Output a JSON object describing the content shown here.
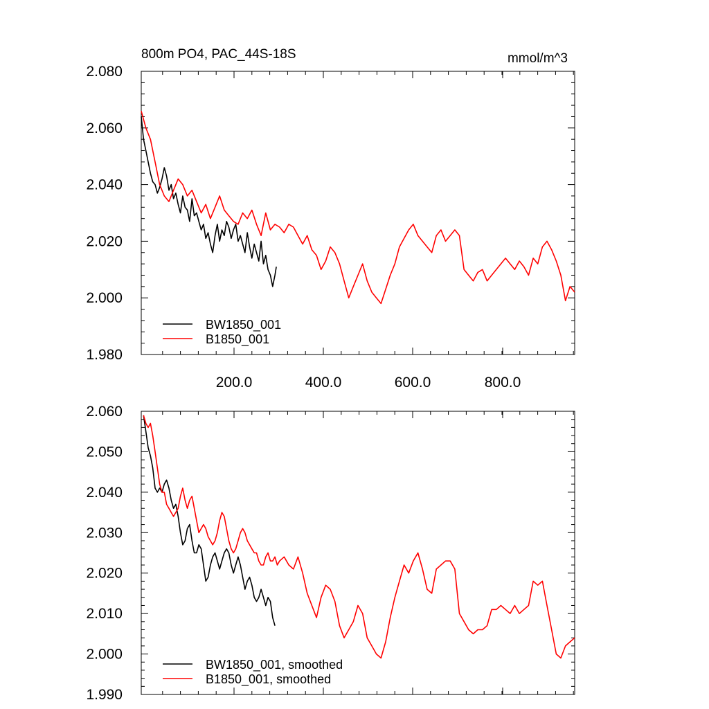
{
  "chart_data": [
    {
      "type": "line",
      "title": "800m PO4, PAC_44S-18S",
      "units": "mmol/m^3",
      "xlim": [
        0,
        940
      ],
      "ylim": [
        1.98,
        2.08
      ],
      "y_ticks": [
        "1.980",
        "2.000",
        "2.020",
        "2.040",
        "2.060",
        "2.080"
      ],
      "x_ticks": [
        "200.0",
        "400.0",
        "600.0",
        "800.0"
      ],
      "legend_position": "bottom-left",
      "series": [
        {
          "name": "BW1850_001",
          "color": "#000000",
          "x": [
            0,
            5,
            10,
            15,
            20,
            25,
            30,
            35,
            40,
            45,
            50,
            55,
            60,
            65,
            70,
            75,
            80,
            85,
            90,
            95,
            100,
            105,
            110,
            115,
            120,
            125,
            130,
            135,
            140,
            145,
            150,
            155,
            160,
            165,
            170,
            175,
            180,
            185,
            190,
            195,
            200,
            205,
            210,
            215,
            220,
            225,
            230,
            235,
            240,
            245,
            250,
            255,
            260,
            265,
            270,
            275,
            280,
            285,
            290,
            293
          ],
          "y": [
            2.064,
            2.056,
            2.052,
            2.048,
            2.044,
            2.041,
            2.04,
            2.037,
            2.039,
            2.042,
            2.046,
            2.043,
            2.038,
            2.04,
            2.035,
            2.037,
            2.033,
            2.03,
            2.036,
            2.032,
            2.031,
            2.027,
            2.035,
            2.029,
            2.03,
            2.027,
            2.024,
            2.026,
            2.021,
            2.023,
            2.019,
            2.016,
            2.022,
            2.026,
            2.02,
            2.024,
            2.022,
            2.027,
            2.025,
            2.021,
            2.024,
            2.026,
            2.02,
            2.022,
            2.019,
            2.016,
            2.023,
            2.018,
            2.014,
            2.019,
            2.016,
            2.013,
            2.02,
            2.012,
            2.015,
            2.01,
            2.008,
            2.004,
            2.008,
            2.011
          ]
        },
        {
          "name": "B1850_001",
          "color": "#ff0000",
          "x": [
            0,
            10,
            20,
            30,
            40,
            50,
            60,
            70,
            80,
            90,
            100,
            110,
            120,
            130,
            140,
            150,
            160,
            170,
            180,
            190,
            200,
            210,
            220,
            230,
            240,
            250,
            260,
            270,
            280,
            290,
            300,
            310,
            320,
            330,
            340,
            350,
            360,
            370,
            380,
            390,
            400,
            410,
            420,
            430,
            440,
            450,
            460,
            470,
            480,
            490,
            500,
            510,
            520,
            530,
            540,
            550,
            560,
            570,
            580,
            590,
            600,
            610,
            620,
            630,
            640,
            650,
            660,
            670,
            680,
            690,
            700,
            710,
            720,
            730,
            740,
            750,
            760,
            770,
            780,
            790,
            800,
            810,
            820,
            830,
            840,
            850,
            860,
            870,
            880,
            890,
            900,
            910,
            920,
            930,
            940
          ],
          "y": [
            2.066,
            2.06,
            2.056,
            2.048,
            2.04,
            2.036,
            2.034,
            2.038,
            2.042,
            2.04,
            2.036,
            2.038,
            2.034,
            2.03,
            2.033,
            2.028,
            2.032,
            2.036,
            2.031,
            2.029,
            2.027,
            2.026,
            2.03,
            2.028,
            2.031,
            2.026,
            2.022,
            2.03,
            2.024,
            2.026,
            2.025,
            2.023,
            2.026,
            2.025,
            2.022,
            2.019,
            2.022,
            2.017,
            2.015,
            2.01,
            2.013,
            2.018,
            2.016,
            2.012,
            2.006,
            2.0,
            2.004,
            2.008,
            2.012,
            2.006,
            2.002,
            2.0,
            1.998,
            2.003,
            2.008,
            2.012,
            2.018,
            2.021,
            2.024,
            2.026,
            2.022,
            2.02,
            2.018,
            2.016,
            2.022,
            2.024,
            2.02,
            2.022,
            2.024,
            2.022,
            2.01,
            2.008,
            2.006,
            2.009,
            2.01,
            2.006,
            2.008,
            2.01,
            2.012,
            2.014,
            2.012,
            2.01,
            2.013,
            2.011,
            2.008,
            2.014,
            2.012,
            2.018,
            2.02,
            2.017,
            2.013,
            2.008,
            1.999,
            2.004,
            2.002
          ]
        }
      ]
    },
    {
      "type": "line",
      "xlim": [
        0,
        940
      ],
      "ylim": [
        1.99,
        2.06
      ],
      "y_ticks": [
        "1.990",
        "2.000",
        "2.010",
        "2.020",
        "2.030",
        "2.040",
        "2.050",
        "2.060"
      ],
      "legend_position": "bottom-left",
      "series": [
        {
          "name": "BW1850_001, smoothed",
          "color": "#000000",
          "x": [
            5,
            10,
            15,
            20,
            25,
            30,
            35,
            40,
            45,
            50,
            55,
            60,
            65,
            70,
            75,
            80,
            85,
            90,
            95,
            100,
            105,
            110,
            115,
            120,
            125,
            130,
            135,
            140,
            145,
            150,
            155,
            160,
            165,
            170,
            175,
            180,
            185,
            190,
            195,
            200,
            205,
            210,
            215,
            220,
            225,
            230,
            235,
            240,
            245,
            250,
            255,
            260,
            265,
            270,
            275,
            280,
            285,
            290
          ],
          "y": [
            2.059,
            2.055,
            2.051,
            2.049,
            2.046,
            2.041,
            2.04,
            2.041,
            2.04,
            2.042,
            2.043,
            2.041,
            2.038,
            2.036,
            2.037,
            2.034,
            2.03,
            2.027,
            2.028,
            2.031,
            2.032,
            2.028,
            2.025,
            2.025,
            2.027,
            2.026,
            2.022,
            2.018,
            2.019,
            2.022,
            2.024,
            2.025,
            2.023,
            2.021,
            2.023,
            2.025,
            2.026,
            2.025,
            2.022,
            2.02,
            2.022,
            2.024,
            2.022,
            2.019,
            2.016,
            2.018,
            2.019,
            2.017,
            2.014,
            2.013,
            2.014,
            2.016,
            2.014,
            2.012,
            2.014,
            2.013,
            2.009,
            2.007
          ]
        },
        {
          "name": "B1850_001, smoothed",
          "color": "#ff0000",
          "x": [
            5,
            10,
            15,
            20,
            25,
            30,
            35,
            40,
            45,
            50,
            55,
            60,
            65,
            70,
            75,
            80,
            85,
            90,
            95,
            100,
            105,
            110,
            115,
            120,
            125,
            130,
            135,
            140,
            145,
            150,
            155,
            160,
            165,
            170,
            175,
            180,
            185,
            190,
            195,
            200,
            205,
            210,
            215,
            220,
            225,
            230,
            235,
            240,
            245,
            250,
            255,
            260,
            265,
            270,
            275,
            280,
            285,
            290,
            295,
            300,
            310,
            320,
            330,
            340,
            350,
            360,
            370,
            380,
            390,
            400,
            410,
            420,
            430,
            440,
            450,
            460,
            470,
            480,
            490,
            500,
            510,
            520,
            530,
            540,
            550,
            560,
            570,
            580,
            590,
            600,
            610,
            620,
            630,
            640,
            650,
            660,
            670,
            680,
            690,
            700,
            710,
            720,
            730,
            740,
            750,
            760,
            770,
            780,
            790,
            800,
            810,
            820,
            830,
            840,
            850,
            860,
            870,
            880,
            890,
            900,
            910,
            920,
            930,
            940
          ],
          "y": [
            2.059,
            2.057,
            2.056,
            2.057,
            2.054,
            2.05,
            2.046,
            2.042,
            2.04,
            2.04,
            2.037,
            2.036,
            2.035,
            2.034,
            2.035,
            2.036,
            2.039,
            2.041,
            2.038,
            2.036,
            2.038,
            2.039,
            2.036,
            2.033,
            2.03,
            2.031,
            2.032,
            2.031,
            2.029,
            2.028,
            2.027,
            2.028,
            2.03,
            2.033,
            2.035,
            2.034,
            2.031,
            2.028,
            2.026,
            2.025,
            2.026,
            2.028,
            2.03,
            2.031,
            2.03,
            2.028,
            2.027,
            2.026,
            2.025,
            2.025,
            2.023,
            2.022,
            2.022,
            2.024,
            2.025,
            2.023,
            2.023,
            2.024,
            2.022,
            2.023,
            2.024,
            2.022,
            2.021,
            2.024,
            2.02,
            2.015,
            2.012,
            2.009,
            2.014,
            2.017,
            2.016,
            2.013,
            2.007,
            2.004,
            2.006,
            2.008,
            2.012,
            2.01,
            2.004,
            2.002,
            2.0,
            1.999,
            2.003,
            2.009,
            2.014,
            2.018,
            2.022,
            2.02,
            2.023,
            2.025,
            2.021,
            2.016,
            2.015,
            2.021,
            2.022,
            2.023,
            2.023,
            2.021,
            2.01,
            2.008,
            2.006,
            2.005,
            2.006,
            2.006,
            2.007,
            2.011,
            2.011,
            2.012,
            2.011,
            2.01,
            2.012,
            2.01,
            2.011,
            2.012,
            2.018,
            2.017,
            2.018,
            2.012,
            2.006,
            2.0,
            1.999,
            2.002,
            2.003,
            2.004
          ]
        }
      ]
    }
  ]
}
